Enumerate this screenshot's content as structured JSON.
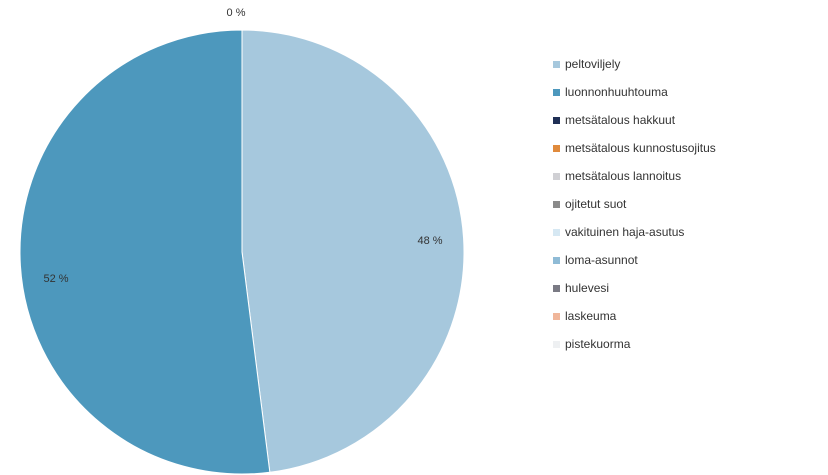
{
  "chart_data": {
    "type": "pie",
    "title": "",
    "legend_position": "right",
    "slices": [
      {
        "name": "peltoviljely",
        "value": 48,
        "label": "48 %",
        "color": "#a6c8dd"
      },
      {
        "name": "luonnonhuuhtouma",
        "value": 52,
        "label": "52 %",
        "color": "#4d98bd"
      },
      {
        "name": "metsätalous hakkuut",
        "value": 0,
        "label": "0 %",
        "color": "#1f2f55"
      },
      {
        "name": "metsätalous kunnostusojitus",
        "value": 0,
        "label": "",
        "color": "#e08a3c"
      },
      {
        "name": "metsätalous lannoitus",
        "value": 0,
        "label": "",
        "color": "#d0d0d4"
      },
      {
        "name": "ojitetut suot",
        "value": 0,
        "label": "",
        "color": "#8a8a8a"
      },
      {
        "name": "vakituinen haja-asutus",
        "value": 0,
        "label": "",
        "color": "#d6e8f3"
      },
      {
        "name": "loma-asunnot",
        "value": 0,
        "label": "",
        "color": "#8fbbd6"
      },
      {
        "name": "hulevesi",
        "value": 0,
        "label": "",
        "color": "#7a7a84"
      },
      {
        "name": "laskeuma",
        "value": 0,
        "label": "",
        "color": "#f0b69a"
      },
      {
        "name": "pistekuorma",
        "value": 0,
        "label": "",
        "color": "#eef0f2"
      }
    ]
  }
}
